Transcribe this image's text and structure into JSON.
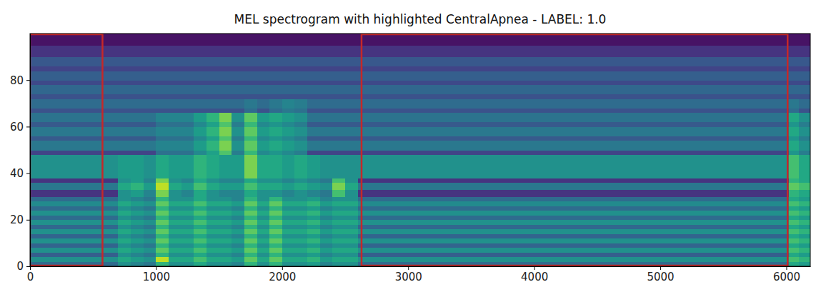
{
  "chart_data": {
    "type": "heatmap",
    "title": "MEL spectrogram with highlighted CentralApnea - LABEL: 1.0",
    "xlim": [
      0,
      6190
    ],
    "ylim": [
      0,
      100
    ],
    "xticks": [
      0,
      1000,
      2000,
      3000,
      4000,
      5000,
      6000
    ],
    "yticks": [
      0,
      20,
      40,
      60,
      80
    ],
    "grid": false,
    "color": "#c62828",
    "color_range": [
      0,
      1
    ],
    "x_edges": [
      0,
      700,
      800,
      900,
      1000,
      1100,
      1200,
      1300,
      1400,
      1500,
      1600,
      1700,
      1800,
      1900,
      2000,
      2100,
      2200,
      2300,
      2400,
      2500,
      2600,
      6020,
      6100,
      6190
    ],
    "y_edges": [
      0,
      2,
      4,
      6,
      8,
      10,
      12,
      14,
      16,
      18,
      20,
      22,
      24,
      26,
      28,
      30,
      33,
      36,
      38,
      48,
      50,
      54,
      56,
      60,
      62,
      66,
      68,
      72,
      74,
      78,
      80,
      84,
      86,
      90,
      95,
      100
    ],
    "cells": [
      [
        0.35,
        0.5,
        0.45,
        0.4,
        0.65,
        0.5,
        0.5,
        0.6,
        0.5,
        0.5,
        0.45,
        0.65,
        0.5,
        0.65,
        0.5,
        0.5,
        0.55,
        0.45,
        0.5,
        0.5,
        0.35,
        0.6,
        0.55
      ],
      [
        0.5,
        0.6,
        0.55,
        0.5,
        0.9,
        0.6,
        0.6,
        0.7,
        0.6,
        0.6,
        0.55,
        0.75,
        0.6,
        0.75,
        0.6,
        0.6,
        0.65,
        0.55,
        0.6,
        0.6,
        0.5,
        0.7,
        0.65
      ],
      [
        0.3,
        0.5,
        0.45,
        0.4,
        0.65,
        0.5,
        0.5,
        0.6,
        0.5,
        0.5,
        0.45,
        0.65,
        0.5,
        0.65,
        0.5,
        0.5,
        0.55,
        0.45,
        0.5,
        0.5,
        0.3,
        0.6,
        0.55
      ],
      [
        0.5,
        0.6,
        0.55,
        0.5,
        0.75,
        0.6,
        0.6,
        0.7,
        0.6,
        0.6,
        0.55,
        0.75,
        0.6,
        0.75,
        0.6,
        0.6,
        0.65,
        0.55,
        0.6,
        0.6,
        0.5,
        0.7,
        0.65
      ],
      [
        0.32,
        0.5,
        0.45,
        0.4,
        0.65,
        0.5,
        0.5,
        0.6,
        0.5,
        0.5,
        0.45,
        0.65,
        0.5,
        0.65,
        0.5,
        0.5,
        0.55,
        0.45,
        0.5,
        0.5,
        0.32,
        0.6,
        0.55
      ],
      [
        0.5,
        0.6,
        0.55,
        0.5,
        0.75,
        0.6,
        0.6,
        0.7,
        0.6,
        0.6,
        0.55,
        0.75,
        0.6,
        0.75,
        0.6,
        0.6,
        0.65,
        0.55,
        0.6,
        0.6,
        0.5,
        0.7,
        0.65
      ],
      [
        0.32,
        0.5,
        0.45,
        0.4,
        0.65,
        0.5,
        0.5,
        0.6,
        0.5,
        0.5,
        0.45,
        0.65,
        0.5,
        0.65,
        0.5,
        0.5,
        0.55,
        0.45,
        0.5,
        0.5,
        0.32,
        0.6,
        0.55
      ],
      [
        0.5,
        0.6,
        0.55,
        0.5,
        0.75,
        0.6,
        0.6,
        0.7,
        0.6,
        0.6,
        0.55,
        0.75,
        0.6,
        0.75,
        0.6,
        0.6,
        0.65,
        0.55,
        0.6,
        0.6,
        0.5,
        0.7,
        0.65
      ],
      [
        0.33,
        0.5,
        0.45,
        0.4,
        0.65,
        0.5,
        0.5,
        0.6,
        0.5,
        0.5,
        0.45,
        0.65,
        0.5,
        0.65,
        0.5,
        0.5,
        0.55,
        0.45,
        0.5,
        0.5,
        0.33,
        0.6,
        0.55
      ],
      [
        0.5,
        0.6,
        0.55,
        0.5,
        0.75,
        0.6,
        0.6,
        0.7,
        0.6,
        0.6,
        0.55,
        0.75,
        0.6,
        0.75,
        0.6,
        0.6,
        0.65,
        0.55,
        0.6,
        0.6,
        0.5,
        0.7,
        0.65
      ],
      [
        0.35,
        0.5,
        0.45,
        0.4,
        0.65,
        0.5,
        0.5,
        0.6,
        0.5,
        0.5,
        0.45,
        0.65,
        0.5,
        0.65,
        0.5,
        0.5,
        0.55,
        0.45,
        0.5,
        0.5,
        0.35,
        0.6,
        0.55
      ],
      [
        0.5,
        0.6,
        0.55,
        0.5,
        0.75,
        0.6,
        0.6,
        0.7,
        0.6,
        0.6,
        0.55,
        0.75,
        0.6,
        0.75,
        0.6,
        0.6,
        0.65,
        0.55,
        0.6,
        0.6,
        0.5,
        0.7,
        0.65
      ],
      [
        0.35,
        0.5,
        0.45,
        0.4,
        0.65,
        0.5,
        0.5,
        0.6,
        0.5,
        0.5,
        0.45,
        0.65,
        0.5,
        0.65,
        0.5,
        0.5,
        0.55,
        0.45,
        0.5,
        0.5,
        0.35,
        0.6,
        0.55
      ],
      [
        0.48,
        0.6,
        0.55,
        0.5,
        0.75,
        0.6,
        0.6,
        0.7,
        0.6,
        0.6,
        0.55,
        0.75,
        0.6,
        0.75,
        0.6,
        0.6,
        0.65,
        0.55,
        0.6,
        0.6,
        0.48,
        0.7,
        0.65
      ],
      [
        0.35,
        0.5,
        0.45,
        0.4,
        0.65,
        0.5,
        0.5,
        0.6,
        0.5,
        0.5,
        0.45,
        0.65,
        0.5,
        0.65,
        0.5,
        0.5,
        0.55,
        0.45,
        0.5,
        0.5,
        0.35,
        0.6,
        0.55
      ],
      [
        0.15,
        0.5,
        0.55,
        0.45,
        0.8,
        0.5,
        0.45,
        0.6,
        0.5,
        0.45,
        0.45,
        0.6,
        0.5,
        0.5,
        0.45,
        0.5,
        0.45,
        0.4,
        0.7,
        0.5,
        0.15,
        0.65,
        0.6
      ],
      [
        0.4,
        0.6,
        0.65,
        0.55,
        0.9,
        0.6,
        0.55,
        0.7,
        0.6,
        0.55,
        0.55,
        0.7,
        0.6,
        0.6,
        0.55,
        0.6,
        0.55,
        0.5,
        0.8,
        0.6,
        0.4,
        0.75,
        0.7
      ],
      [
        0.15,
        0.5,
        0.55,
        0.45,
        0.8,
        0.5,
        0.45,
        0.6,
        0.5,
        0.45,
        0.45,
        0.6,
        0.5,
        0.5,
        0.45,
        0.5,
        0.45,
        0.4,
        0.7,
        0.5,
        0.15,
        0.65,
        0.6
      ],
      [
        0.5,
        0.55,
        0.55,
        0.5,
        0.6,
        0.55,
        0.55,
        0.65,
        0.6,
        0.55,
        0.55,
        0.8,
        0.6,
        0.6,
        0.55,
        0.6,
        0.55,
        0.5,
        0.5,
        0.5,
        0.5,
        0.7,
        0.6
      ],
      [
        0.2,
        0.2,
        0.2,
        0.2,
        0.37,
        0.37,
        0.37,
        0.47,
        0.57,
        0.72,
        0.42,
        0.67,
        0.47,
        0.52,
        0.47,
        0.42,
        0.2,
        0.2,
        0.2,
        0.2,
        0.2,
        0.52,
        0.42
      ],
      [
        0.4,
        0.4,
        0.4,
        0.4,
        0.45,
        0.45,
        0.45,
        0.55,
        0.65,
        0.8,
        0.5,
        0.75,
        0.55,
        0.6,
        0.55,
        0.5,
        0.4,
        0.4,
        0.4,
        0.4,
        0.4,
        0.6,
        0.5
      ],
      [
        0.28,
        0.28,
        0.28,
        0.28,
        0.37,
        0.37,
        0.37,
        0.47,
        0.57,
        0.72,
        0.42,
        0.67,
        0.47,
        0.52,
        0.47,
        0.42,
        0.28,
        0.28,
        0.28,
        0.28,
        0.28,
        0.52,
        0.42
      ],
      [
        0.4,
        0.4,
        0.4,
        0.4,
        0.45,
        0.45,
        0.45,
        0.55,
        0.65,
        0.8,
        0.5,
        0.75,
        0.55,
        0.6,
        0.55,
        0.5,
        0.4,
        0.4,
        0.4,
        0.4,
        0.4,
        0.6,
        0.5
      ],
      [
        0.28,
        0.28,
        0.28,
        0.28,
        0.37,
        0.37,
        0.37,
        0.47,
        0.57,
        0.72,
        0.42,
        0.67,
        0.47,
        0.52,
        0.47,
        0.42,
        0.28,
        0.28,
        0.28,
        0.28,
        0.28,
        0.52,
        0.42
      ],
      [
        0.38,
        0.38,
        0.38,
        0.38,
        0.45,
        0.45,
        0.45,
        0.55,
        0.65,
        0.8,
        0.5,
        0.75,
        0.55,
        0.6,
        0.55,
        0.5,
        0.38,
        0.38,
        0.38,
        0.38,
        0.38,
        0.6,
        0.5
      ],
      [
        0.25,
        0.25,
        0.25,
        0.25,
        0.25,
        0.25,
        0.25,
        0.25,
        0.25,
        0.25,
        0.25,
        0.35,
        0.25,
        0.35,
        0.4,
        0.37,
        0.25,
        0.25,
        0.25,
        0.25,
        0.25,
        0.35,
        0.25
      ],
      [
        0.35,
        0.35,
        0.35,
        0.35,
        0.35,
        0.35,
        0.35,
        0.35,
        0.35,
        0.35,
        0.35,
        0.4,
        0.35,
        0.4,
        0.45,
        0.42,
        0.35,
        0.35,
        0.35,
        0.35,
        0.35,
        0.4,
        0.35
      ],
      [
        0.25,
        0.25,
        0.25,
        0.25,
        0.25,
        0.25,
        0.25,
        0.25,
        0.25,
        0.25,
        0.25,
        0.25,
        0.25,
        0.25,
        0.25,
        0.25,
        0.25,
        0.25,
        0.25,
        0.25,
        0.25,
        0.25,
        0.25
      ],
      [
        0.33,
        0.33,
        0.33,
        0.33,
        0.33,
        0.33,
        0.33,
        0.33,
        0.33,
        0.33,
        0.33,
        0.33,
        0.33,
        0.33,
        0.33,
        0.33,
        0.33,
        0.33,
        0.33,
        0.33,
        0.33,
        0.33,
        0.33
      ],
      [
        0.22,
        0.22,
        0.22,
        0.22,
        0.22,
        0.22,
        0.22,
        0.22,
        0.22,
        0.22,
        0.22,
        0.22,
        0.22,
        0.22,
        0.22,
        0.22,
        0.22,
        0.22,
        0.22,
        0.22,
        0.22,
        0.22,
        0.22
      ],
      [
        0.3,
        0.3,
        0.3,
        0.3,
        0.3,
        0.3,
        0.3,
        0.3,
        0.3,
        0.3,
        0.3,
        0.3,
        0.3,
        0.3,
        0.3,
        0.3,
        0.3,
        0.3,
        0.3,
        0.3,
        0.3,
        0.3,
        0.3
      ],
      [
        0.2,
        0.2,
        0.2,
        0.2,
        0.2,
        0.2,
        0.2,
        0.2,
        0.2,
        0.2,
        0.2,
        0.2,
        0.2,
        0.2,
        0.2,
        0.2,
        0.2,
        0.2,
        0.2,
        0.2,
        0.2,
        0.2,
        0.2
      ],
      [
        0.27,
        0.27,
        0.27,
        0.27,
        0.27,
        0.27,
        0.27,
        0.27,
        0.27,
        0.27,
        0.27,
        0.27,
        0.27,
        0.27,
        0.27,
        0.27,
        0.27,
        0.27,
        0.27,
        0.27,
        0.27,
        0.27,
        0.27
      ],
      [
        0.15,
        0.15,
        0.15,
        0.15,
        0.15,
        0.15,
        0.15,
        0.15,
        0.15,
        0.15,
        0.15,
        0.15,
        0.15,
        0.15,
        0.15,
        0.15,
        0.15,
        0.15,
        0.15,
        0.15,
        0.15,
        0.15,
        0.15
      ],
      [
        0.05,
        0.05,
        0.05,
        0.05,
        0.05,
        0.05,
        0.05,
        0.05,
        0.05,
        0.05,
        0.05,
        0.05,
        0.05,
        0.05,
        0.05,
        0.05,
        0.05,
        0.05,
        0.05,
        0.05,
        0.05,
        0.05,
        0.05
      ]
    ],
    "highlights": [
      {
        "x0": 0,
        "x1": 575
      },
      {
        "x0": 2630,
        "x1": 6010
      }
    ]
  }
}
